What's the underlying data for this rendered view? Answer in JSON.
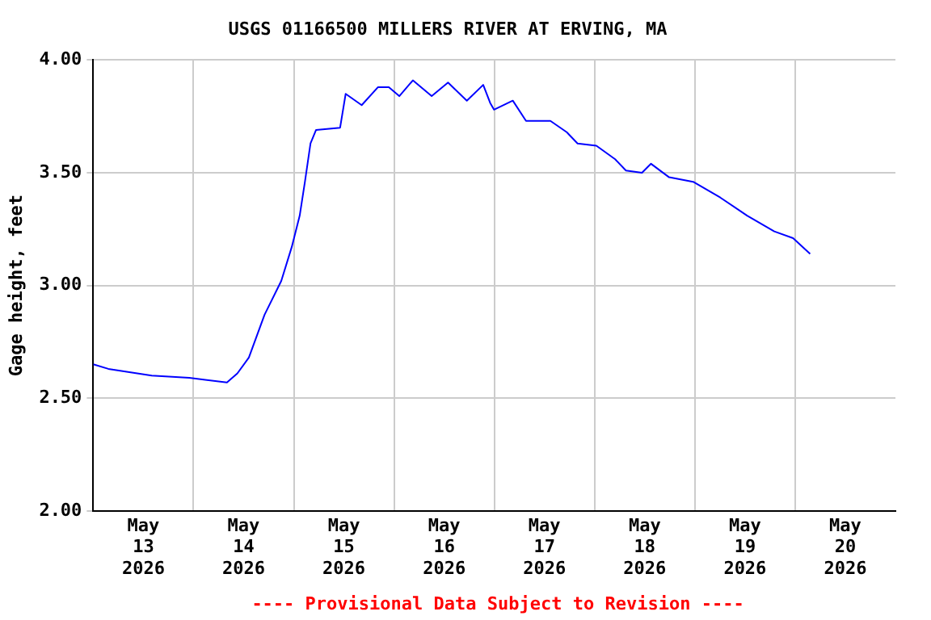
{
  "chart_data": {
    "type": "line",
    "title": "USGS 01166500 MILLERS RIVER AT ERVING, MA",
    "ylabel": "Gage height, feet",
    "annotations": [
      "---- Provisional Data Subject to Revision ----"
    ],
    "x": [
      "2026-05-13T00:00",
      "2026-05-13T03:36",
      "2026-05-13T14:00",
      "2026-05-13T23:00",
      "2026-05-14T08:00",
      "2026-05-14T10:30",
      "2026-05-14T13:15",
      "2026-05-14T17:00",
      "2026-05-14T21:00",
      "2026-05-14T23:30",
      "2026-05-15T01:25",
      "2026-05-15T02:40",
      "2026-05-15T04:00",
      "2026-05-15T05:20",
      "2026-05-15T11:05",
      "2026-05-15T12:25",
      "2026-05-15T16:15",
      "2026-05-15T20:10",
      "2026-05-15T22:45",
      "2026-05-16T01:15",
      "2026-05-16T04:30",
      "2026-05-16T09:00",
      "2026-05-16T12:55",
      "2026-05-16T17:25",
      "2026-05-16T21:20",
      "2026-05-16T23:00",
      "2026-05-16T23:55",
      "2026-05-17T04:25",
      "2026-05-17T07:35",
      "2026-05-17T13:25",
      "2026-05-17T17:20",
      "2026-05-17T19:55",
      "2026-05-18T00:25",
      "2026-05-18T04:55",
      "2026-05-18T07:30",
      "2026-05-18T11:20",
      "2026-05-18T13:30",
      "2026-05-18T17:50",
      "2026-05-18T23:35",
      "2026-05-19T06:05",
      "2026-05-19T12:30",
      "2026-05-19T19:00",
      "2026-05-19T23:30",
      "2026-05-20T03:35"
    ],
    "series": [
      {
        "color": "#0000ff",
        "values": [
          2.65,
          2.63,
          2.6,
          2.59,
          2.57,
          2.61,
          2.68,
          2.87,
          3.02,
          3.17,
          3.31,
          3.46,
          3.63,
          3.69,
          3.7,
          3.85,
          3.8,
          3.88,
          3.88,
          3.84,
          3.91,
          3.84,
          3.9,
          3.82,
          3.89,
          3.81,
          3.78,
          3.82,
          3.73,
          3.73,
          3.68,
          3.63,
          3.62,
          3.56,
          3.51,
          3.5,
          3.54,
          3.48,
          3.46,
          3.39,
          3.31,
          3.24,
          3.21,
          3.14
        ]
      }
    ],
    "xlim": [
      "2026-05-13T00:00",
      "2026-05-21T00:00"
    ],
    "xticks": [
      {
        "value": "2026-05-13T12:00",
        "label": "May 13 2026"
      },
      {
        "value": "2026-05-14T00:00",
        "label": null
      },
      {
        "value": "2026-05-14T12:00",
        "label": "May 14 2026"
      },
      {
        "value": "2026-05-15T00:00",
        "label": null
      },
      {
        "value": "2026-05-15T12:00",
        "label": "May 15 2026"
      },
      {
        "value": "2026-05-16T00:00",
        "label": null
      },
      {
        "value": "2026-05-16T12:00",
        "label": "May 16 2026"
      },
      {
        "value": "2026-05-17T00:00",
        "label": null
      },
      {
        "value": "2026-05-17T12:00",
        "label": "May 17 2026"
      },
      {
        "value": "2026-05-18T00:00",
        "label": null
      },
      {
        "value": "2026-05-18T12:00",
        "label": "May 18 2026"
      },
      {
        "value": "2026-05-19T00:00",
        "label": null
      },
      {
        "value": "2026-05-19T12:00",
        "label": "May 19 2026"
      },
      {
        "value": "2026-05-20T00:00",
        "label": null
      },
      {
        "value": "2026-05-20T12:00",
        "label": "May 20 2026"
      }
    ],
    "ylim": [
      2,
      4
    ],
    "yticks": [
      {
        "value": 2,
        "label": "2.00"
      },
      {
        "value": 2.5,
        "label": "2.50"
      },
      {
        "value": 3,
        "label": "3.00"
      },
      {
        "value": 3.5,
        "label": "3.50"
      },
      {
        "value": 4,
        "label": "4.00"
      }
    ],
    "grid": true,
    "legend": false,
    "marker": "none",
    "line_style": "solid"
  }
}
